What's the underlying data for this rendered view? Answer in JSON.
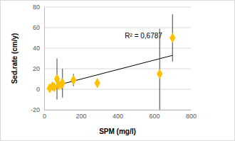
{
  "chart_data": {
    "type": "scatter",
    "x_label": "SPM (mg/l)",
    "y_label": "Sed.rate (cm/y)",
    "x": [
      30,
      45,
      55,
      70,
      80,
      95,
      100,
      160,
      290,
      630,
      700
    ],
    "values": [
      1,
      3,
      2,
      10,
      4,
      5,
      6,
      9,
      6,
      15,
      50
    ],
    "errors": [
      2,
      3,
      2,
      20,
      4,
      5,
      14,
      6,
      4,
      44,
      23
    ],
    "color": "#ffc000",
    "marker": "diamond",
    "xlim": [
      0,
      800
    ],
    "xticks": [
      0,
      200,
      400,
      600,
      800
    ],
    "ylim": [
      -20,
      80
    ],
    "yticks": [
      -20,
      0,
      20,
      40,
      60,
      80
    ],
    "grid": true,
    "trendline": {
      "x": [
        30,
        700
      ],
      "values": [
        2,
        33
      ],
      "color": "#000000"
    },
    "annotations": [
      "R² = 0,6787"
    ]
  }
}
